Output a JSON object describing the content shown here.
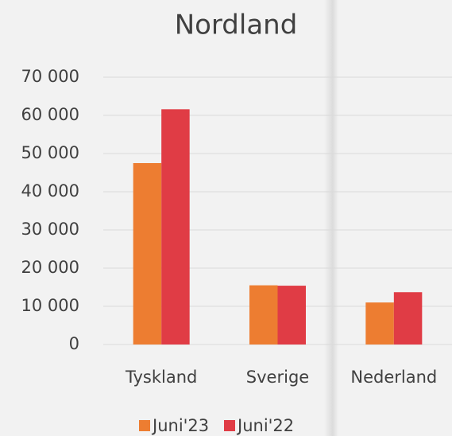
{
  "chart_data": {
    "type": "bar",
    "title": "Nordland",
    "categories": [
      "Tyskland",
      "Sverige",
      "Nederland"
    ],
    "series": [
      {
        "name": "Juni'23",
        "color": "#ed7d31",
        "values": [
          47500,
          15500,
          11000
        ]
      },
      {
        "name": "Juni'22",
        "color": "#e03c45",
        "values": [
          61600,
          15400,
          13700
        ]
      }
    ],
    "ylim": [
      0,
      70000
    ],
    "yticks": [
      0,
      {
        "value": 10000,
        "label": "10 000"
      },
      {
        "value": 20000,
        "label": "20 000"
      },
      {
        "value": 30000,
        "label": "30 000"
      },
      {
        "value": 40000,
        "label": "40 000"
      },
      {
        "value": 50000,
        "label": "50 000"
      },
      {
        "value": 60000,
        "label": "60 000"
      },
      {
        "value": 70000,
        "label": "70 000"
      }
    ],
    "grid": true,
    "legend": "bottom"
  }
}
